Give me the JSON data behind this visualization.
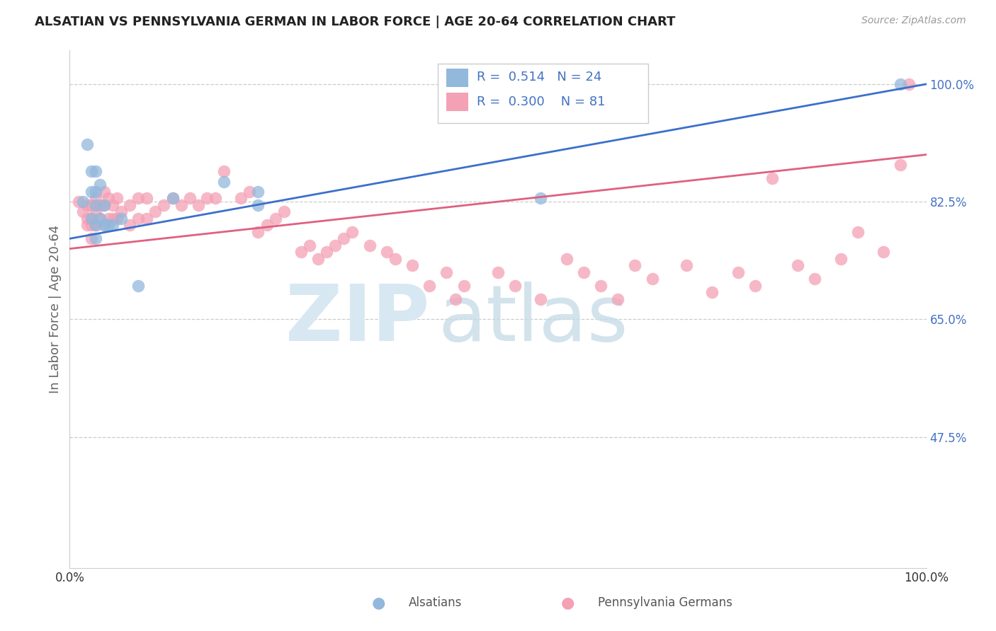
{
  "title": "ALSATIAN VS PENNSYLVANIA GERMAN IN LABOR FORCE | AGE 20-64 CORRELATION CHART",
  "source": "Source: ZipAtlas.com",
  "ylabel": "In Labor Force | Age 20-64",
  "xlim": [
    0.0,
    1.0
  ],
  "ylim": [
    0.28,
    1.05
  ],
  "x_tick_labels": [
    "0.0%",
    "100.0%"
  ],
  "y_tick_labels_right": [
    "47.5%",
    "65.0%",
    "82.5%",
    "100.0%"
  ],
  "y_tick_values_right": [
    0.475,
    0.65,
    0.825,
    1.0
  ],
  "legend_labels": [
    "Alsatians",
    "Pennsylvania Germans"
  ],
  "alsatian_R": "0.514",
  "alsatian_N": "24",
  "penn_R": "0.300",
  "penn_N": "81",
  "alsatian_color": "#92b8db",
  "penn_color": "#f4a0b5",
  "trend_blue": "#3b6fcc",
  "trend_pink": "#e06080",
  "background_color": "#ffffff",
  "alsatian_x": [
    0.015,
    0.02,
    0.025,
    0.025,
    0.025,
    0.03,
    0.03,
    0.03,
    0.03,
    0.03,
    0.035,
    0.035,
    0.04,
    0.04,
    0.045,
    0.05,
    0.06,
    0.08,
    0.12,
    0.18,
    0.22,
    0.22,
    0.55,
    0.97
  ],
  "alsatian_y": [
    0.825,
    0.91,
    0.87,
    0.84,
    0.8,
    0.87,
    0.84,
    0.82,
    0.79,
    0.77,
    0.85,
    0.8,
    0.82,
    0.79,
    0.79,
    0.79,
    0.8,
    0.7,
    0.83,
    0.855,
    0.84,
    0.82,
    0.83,
    1.0
  ],
  "penn_x": [
    0.01,
    0.015,
    0.02,
    0.02,
    0.02,
    0.025,
    0.025,
    0.025,
    0.025,
    0.03,
    0.03,
    0.03,
    0.035,
    0.035,
    0.04,
    0.04,
    0.04,
    0.045,
    0.045,
    0.05,
    0.05,
    0.055,
    0.055,
    0.06,
    0.07,
    0.07,
    0.08,
    0.08,
    0.09,
    0.09,
    0.1,
    0.11,
    0.12,
    0.13,
    0.14,
    0.15,
    0.16,
    0.17,
    0.18,
    0.2,
    0.21,
    0.22,
    0.23,
    0.24,
    0.25,
    0.27,
    0.28,
    0.29,
    0.3,
    0.31,
    0.32,
    0.33,
    0.35,
    0.37,
    0.38,
    0.4,
    0.42,
    0.44,
    0.45,
    0.46,
    0.5,
    0.52,
    0.55,
    0.58,
    0.6,
    0.62,
    0.64,
    0.66,
    0.68,
    0.72,
    0.75,
    0.78,
    0.8,
    0.82,
    0.85,
    0.87,
    0.9,
    0.92,
    0.95,
    0.97,
    0.98
  ],
  "penn_y": [
    0.825,
    0.81,
    0.82,
    0.8,
    0.79,
    0.82,
    0.8,
    0.79,
    0.77,
    0.83,
    0.81,
    0.79,
    0.82,
    0.8,
    0.84,
    0.82,
    0.79,
    0.83,
    0.8,
    0.82,
    0.8,
    0.83,
    0.8,
    0.81,
    0.82,
    0.79,
    0.83,
    0.8,
    0.83,
    0.8,
    0.81,
    0.82,
    0.83,
    0.82,
    0.83,
    0.82,
    0.83,
    0.83,
    0.87,
    0.83,
    0.84,
    0.78,
    0.79,
    0.8,
    0.81,
    0.75,
    0.76,
    0.74,
    0.75,
    0.76,
    0.77,
    0.78,
    0.76,
    0.75,
    0.74,
    0.73,
    0.7,
    0.72,
    0.68,
    0.7,
    0.72,
    0.7,
    0.68,
    0.74,
    0.72,
    0.7,
    0.68,
    0.73,
    0.71,
    0.73,
    0.69,
    0.72,
    0.7,
    0.86,
    0.73,
    0.71,
    0.74,
    0.78,
    0.75,
    0.88,
    1.0
  ]
}
